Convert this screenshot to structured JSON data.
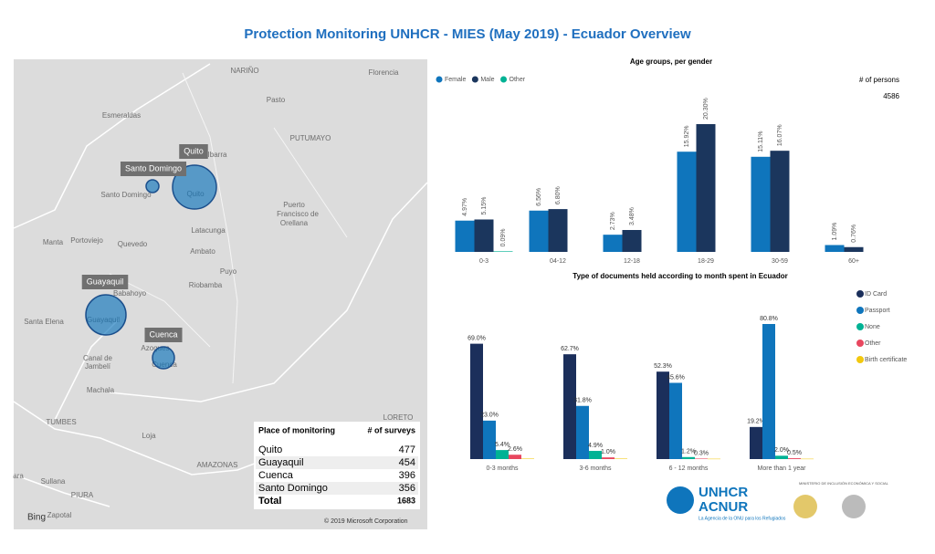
{
  "title": "Protection Monitoring UNHCR - MIES (May 2019) - Ecuador Overview",
  "map": {
    "places": [
      "NARIÑO",
      "Florencia",
      "Pasto",
      "Esmeraldas",
      "PUTUMAYO",
      "Ibarra",
      "Santo Domingo",
      "Quito",
      "Puerto",
      "Francisco de",
      "Orellana",
      "Latacunga",
      "Manta",
      "Portoviejo",
      "Quevedo",
      "Ambato",
      "Puyo",
      "Riobamba",
      "Babahoyo",
      "Santa Elena",
      "Guayaquil",
      "Azogues",
      "Cuenca",
      "Canal de",
      "Jambelí",
      "Machala",
      "TUMBES",
      "Loja",
      "LORETO",
      "AMAZONAS",
      "ara",
      "Sullana",
      "PIURA",
      "Zapotal"
    ],
    "bubbles": [
      "Quito",
      "Santo Domingo",
      "Guayaquil",
      "Cuenca"
    ],
    "provider": "Bing",
    "copyright": "© 2019 Microsoft Corporation"
  },
  "table": {
    "header": [
      "Place of monitoring",
      "# of surveys"
    ],
    "rows": [
      [
        "Quito",
        "477"
      ],
      [
        "Guayaquil",
        "454"
      ],
      [
        "Cuenca",
        "396"
      ],
      [
        "Santo Domingo",
        "356"
      ]
    ],
    "total": [
      "Total",
      "1683"
    ]
  },
  "card": {
    "label": "# of persons",
    "value": "4586"
  },
  "logos": {
    "unhcr": "UNHCR",
    "acnur": "ACNUR",
    "tagline": "La Agencia de la ONU para los Refugiados",
    "ministry": "MINISTERIO DE INCLUSIÓN ECONÓMICA Y SOCIAL"
  },
  "chart_data": [
    {
      "type": "bar",
      "title": "Age groups, per gender",
      "categories": [
        "0-3",
        "04-12",
        "12-18",
        "18-29",
        "30-59",
        "60+"
      ],
      "series": [
        {
          "name": "Female",
          "color": "#0f75bc",
          "values": [
            4.97,
            6.56,
            2.73,
            15.92,
            15.11,
            1.09
          ],
          "value_labels": [
            "4.97%",
            "6.56%",
            "2.73%",
            "15.92%",
            "15.11%",
            "1.09%"
          ]
        },
        {
          "name": "Male",
          "color": "#1b365d",
          "values": [
            5.15,
            6.8,
            3.48,
            20.3,
            16.07,
            0.76
          ],
          "value_labels": [
            "5.15%",
            "6.80%",
            "3.48%",
            "20.30%",
            "16.07%",
            "0.76%"
          ]
        },
        {
          "name": "Other",
          "color": "#00b294",
          "values": [
            0.09,
            null,
            null,
            null,
            null,
            null
          ],
          "value_labels": [
            "0.09%",
            null,
            null,
            null,
            null,
            null
          ]
        }
      ]
    },
    {
      "type": "bar",
      "title": "Type of documents held according to month spent in Ecuador",
      "categories": [
        "0-3 months",
        "3-6 months",
        "6 - 12 months",
        "More than 1 year"
      ],
      "series": [
        {
          "name": "ID Card",
          "color": "#1b2f5b",
          "values": [
            69.0,
            62.7,
            52.3,
            19.2
          ],
          "value_labels": [
            "69.0%",
            "62.7%",
            "52.3%",
            "19.2%"
          ]
        },
        {
          "name": "Passport",
          "color": "#0f75bc",
          "values": [
            23.0,
            31.8,
            45.6,
            80.8
          ],
          "value_labels": [
            "23.0%",
            "31.8%",
            "45.6%",
            "80.8%"
          ]
        },
        {
          "name": "None",
          "color": "#00b294",
          "values": [
            5.4,
            4.9,
            1.2,
            2.0
          ],
          "value_labels": [
            "5.4%",
            "4.9%",
            "1.2%",
            "2.0%"
          ]
        },
        {
          "name": "Other",
          "color": "#e8475f",
          "values": [
            2.6,
            1.0,
            0.3,
            0.5
          ],
          "value_labels": [
            "2.6%",
            "1.0%",
            "0.3%",
            "0.5%"
          ]
        },
        {
          "name": "Birth certificate",
          "color": "#f2c80f",
          "values": [
            0.3,
            0.3,
            0.2,
            0.2
          ]
        }
      ]
    }
  ]
}
